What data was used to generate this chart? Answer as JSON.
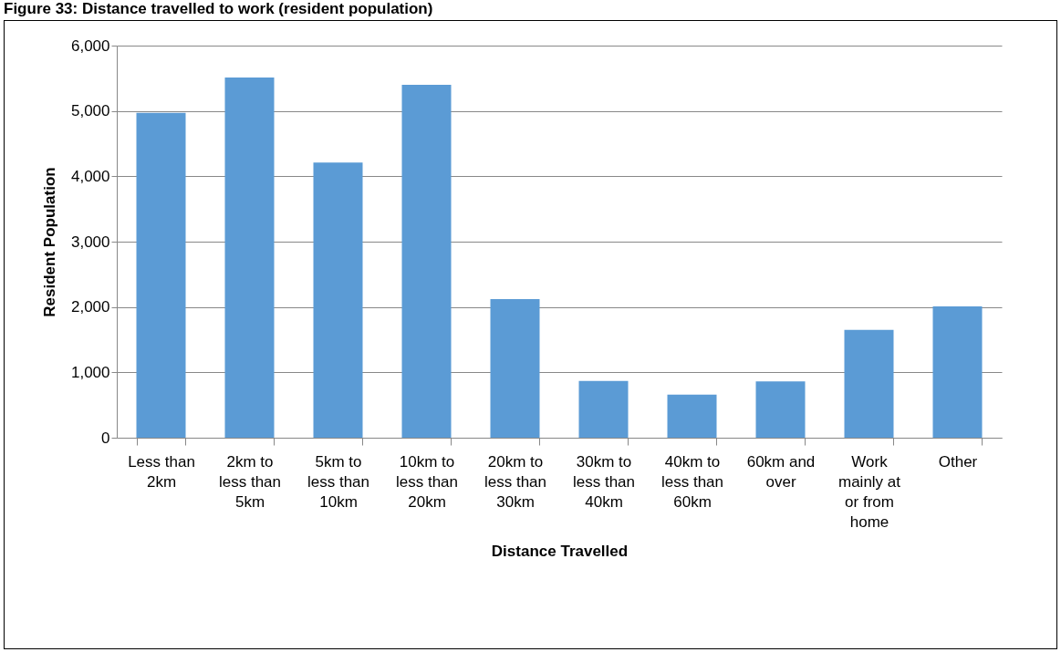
{
  "chart_data": {
    "type": "bar",
    "title": "Figure 33: Distance travelled to work (resident population)",
    "xlabel": "Distance Travelled",
    "ylabel": "Resident Population",
    "categories": [
      "Less than 2km",
      "2km to less than 5km",
      "5km to less than 10km",
      "10km to less than 20km",
      "20km to less than 30km",
      "30km to less than 40km",
      "40km to less than 60km",
      "60km and over",
      "Work mainly at or from home",
      "Other"
    ],
    "values": [
      4970,
      5510,
      4210,
      5400,
      2120,
      870,
      660,
      860,
      1650,
      2010
    ],
    "color": "#5b9bd5",
    "ylim": [
      0,
      6000
    ],
    "yticks": [
      0,
      {
        "value": 1000,
        "label": "1,000"
      },
      {
        "value": 2000,
        "label": "2,000"
      },
      {
        "value": 3000,
        "label": "3,000"
      },
      {
        "value": 4000,
        "label": "4,000"
      },
      {
        "value": 5000,
        "label": "5,000"
      },
      {
        "value": 6000,
        "label": "6,000"
      }
    ],
    "grid": "y"
  }
}
